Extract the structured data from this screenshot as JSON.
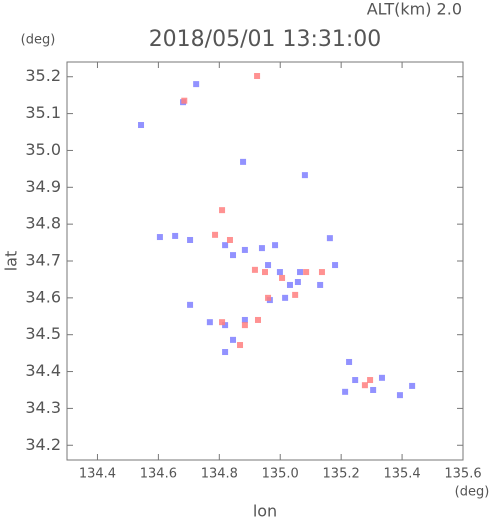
{
  "chart_data": {
    "type": "scatter",
    "title": "2018/05/01 13:31:00",
    "subtitle": "ALT(km) 2.0",
    "x_label": "lon",
    "x_unit": "(deg)",
    "y_label": "lat",
    "y_unit": "(deg)",
    "xlim": [
      134.3,
      135.6
    ],
    "ylim": [
      34.16,
      35.24
    ],
    "xticks": [
      134.4,
      134.6,
      134.8,
      {
        "value": 135.0,
        "label": "135.0"
      },
      135.2,
      135.4,
      135.6
    ],
    "yticks": [
      34.2,
      34.3,
      34.4,
      34.5,
      34.6,
      34.7,
      34.8,
      34.9,
      {
        "value": 35.0,
        "label": "35.0"
      },
      35.1,
      35.2
    ],
    "series": [
      {
        "color": "#7f7fff",
        "x": [
          134.543,
          134.681,
          134.724,
          134.878,
          135.081,
          134.605,
          134.655,
          134.704,
          134.819,
          134.845,
          134.884,
          134.94,
          134.983,
          134.96,
          134.999,
          135.032,
          135.058,
          135.016,
          134.966,
          135.065,
          134.704,
          134.769,
          134.819,
          134.884,
          134.845,
          134.819,
          135.163,
          135.18,
          135.131,
          135.226,
          135.246,
          135.213,
          135.305,
          135.393,
          135.433,
          135.334
        ],
        "y": [
          35.069,
          35.131,
          35.18,
          34.969,
          34.933,
          34.765,
          34.768,
          34.757,
          34.743,
          34.716,
          34.73,
          34.735,
          34.743,
          34.689,
          34.67,
          34.635,
          34.643,
          34.6,
          34.594,
          34.67,
          34.581,
          34.534,
          34.526,
          34.54,
          34.486,
          34.453,
          34.762,
          34.689,
          34.635,
          34.426,
          34.377,
          34.345,
          34.35,
          34.336,
          34.361,
          34.383
        ]
      },
      {
        "color": "#ff7f7f",
        "x": [
          134.924,
          134.685,
          134.809,
          134.786,
          134.835,
          134.917,
          134.95,
          135.006,
          135.049,
          134.96,
          134.884,
          134.868,
          134.809,
          134.927,
          135.295,
          135.278,
          135.085,
          135.137
        ],
        "y": [
          35.202,
          35.135,
          34.838,
          34.771,
          34.757,
          34.676,
          34.67,
          34.654,
          34.608,
          34.6,
          34.526,
          34.472,
          34.534,
          34.54,
          34.377,
          34.363,
          34.67,
          34.67
        ]
      }
    ]
  }
}
